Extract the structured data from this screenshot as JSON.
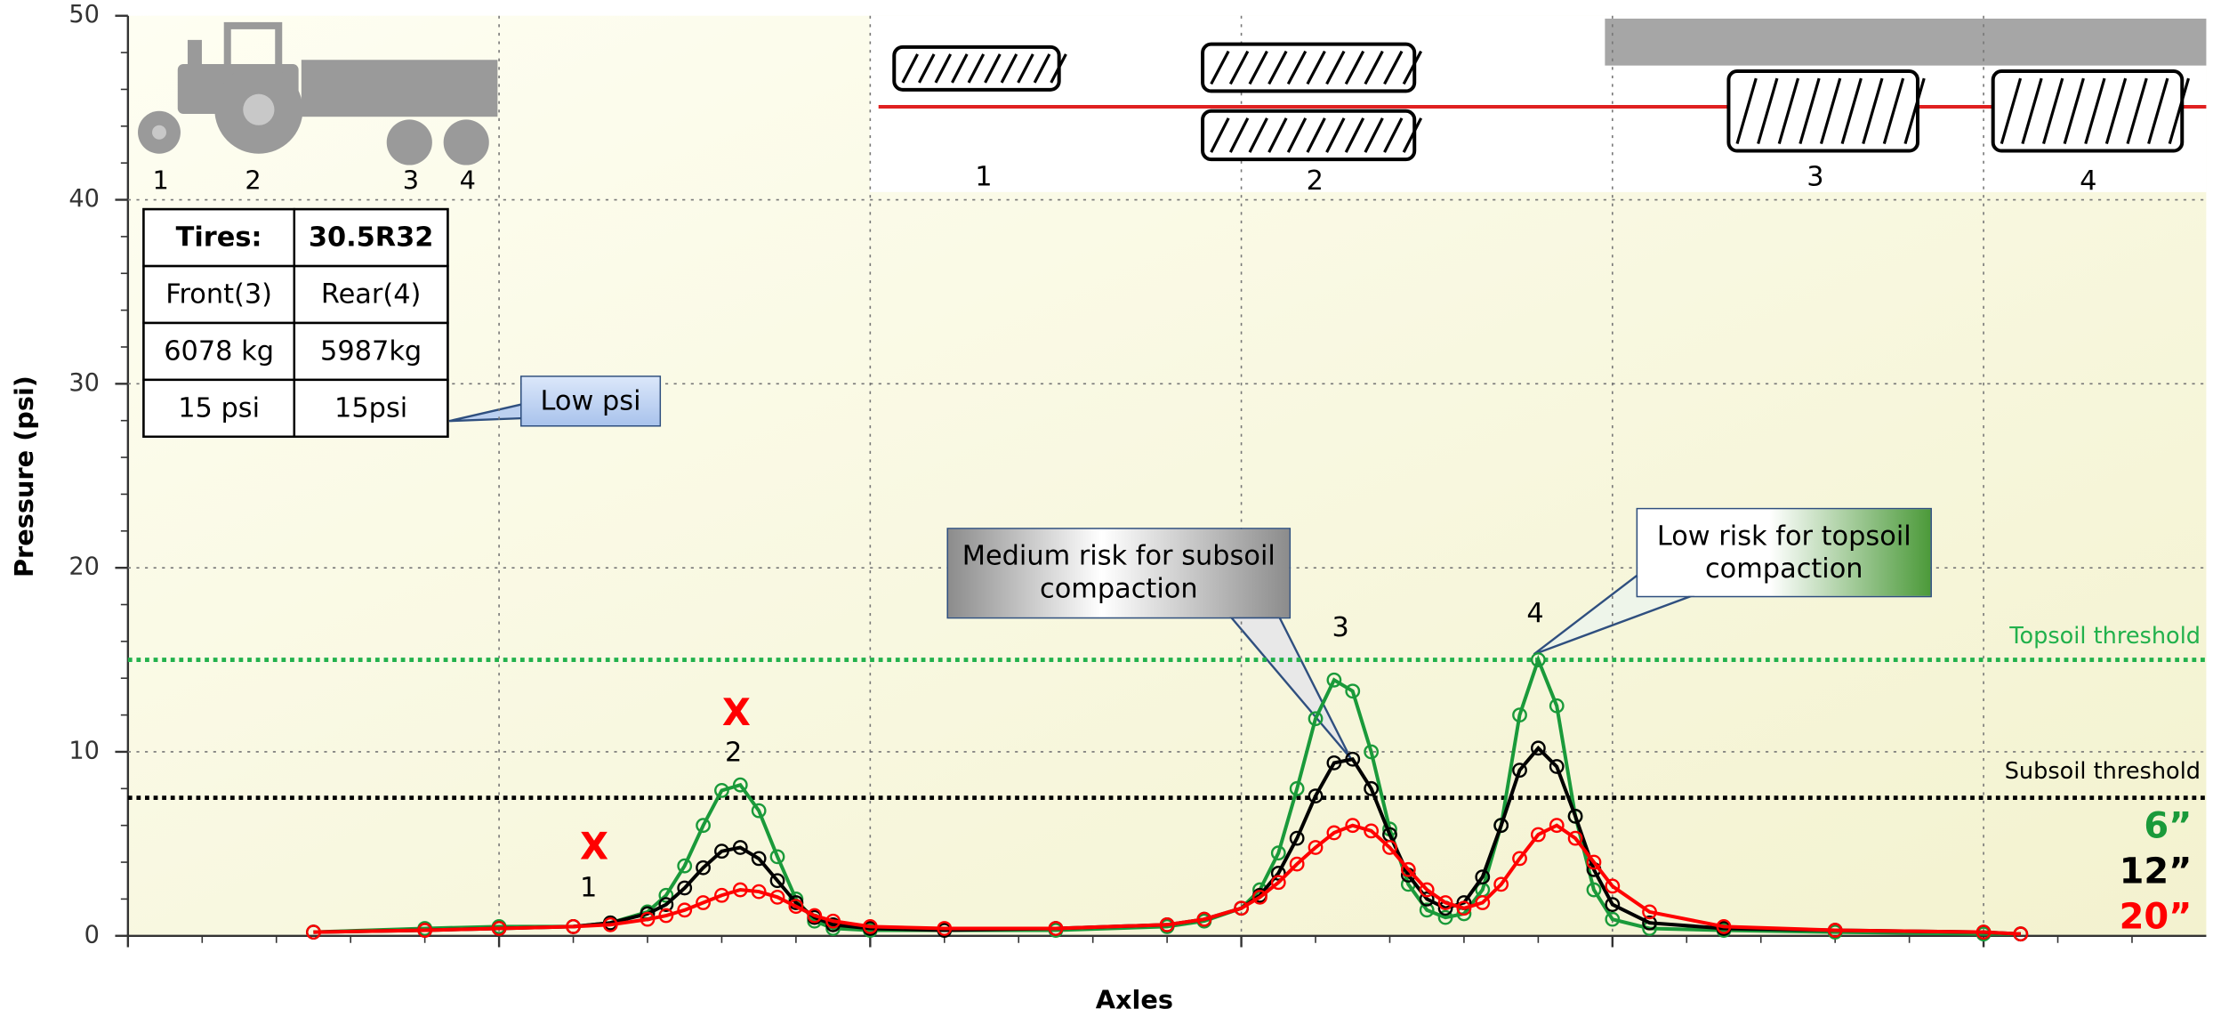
{
  "chart_data": {
    "type": "line",
    "y_label": "Pressure (psi)",
    "x_label": "Axles",
    "xlim": [
      0,
      5.6
    ],
    "ylim": [
      0,
      50
    ],
    "xticks": [
      0,
      1,
      2,
      3,
      4,
      5
    ],
    "yticks": [
      0,
      10,
      20,
      30,
      40,
      50
    ],
    "grid": true,
    "x": [
      0.5,
      0.8,
      1.0,
      1.2,
      1.3,
      1.4,
      1.45,
      1.5,
      1.55,
      1.6,
      1.65,
      1.7,
      1.75,
      1.8,
      1.85,
      1.9,
      2.0,
      2.2,
      2.5,
      2.8,
      2.9,
      3.0,
      3.05,
      3.1,
      3.15,
      3.2,
      3.25,
      3.3,
      3.35,
      3.4,
      3.45,
      3.5,
      3.55,
      3.6,
      3.65,
      3.7,
      3.75,
      3.8,
      3.85,
      3.9,
      3.95,
      4.0,
      4.1,
      4.3,
      4.6,
      5.0,
      5.1
    ],
    "series": [
      {
        "name": "6”",
        "color": "#1a9a3a",
        "values": [
          0.2,
          0.4,
          0.5,
          0.5,
          0.7,
          1.3,
          2.2,
          3.8,
          6.0,
          7.9,
          8.2,
          6.8,
          4.3,
          2.0,
          0.8,
          0.4,
          0.3,
          0.3,
          0.3,
          0.5,
          0.8,
          1.5,
          2.5,
          4.5,
          8.0,
          11.8,
          13.9,
          13.3,
          10.0,
          5.8,
          2.8,
          1.4,
          1.0,
          1.2,
          2.5,
          6.0,
          12.0,
          15.0,
          12.5,
          6.5,
          2.5,
          0.9,
          0.4,
          0.3,
          0.2,
          0.1,
          0.1
        ]
      },
      {
        "name": "12”",
        "color": "#000000",
        "values": [
          0.2,
          0.3,
          0.4,
          0.5,
          0.7,
          1.2,
          1.7,
          2.6,
          3.7,
          4.6,
          4.8,
          4.2,
          3.0,
          1.8,
          1.0,
          0.6,
          0.4,
          0.3,
          0.4,
          0.6,
          0.9,
          1.5,
          2.2,
          3.4,
          5.3,
          7.6,
          9.4,
          9.6,
          8.0,
          5.5,
          3.3,
          2.0,
          1.5,
          1.8,
          3.2,
          6.0,
          9.0,
          10.2,
          9.2,
          6.5,
          3.6,
          1.7,
          0.7,
          0.4,
          0.3,
          0.2,
          0.1
        ]
      },
      {
        "name": "20”",
        "color": "#ff0000",
        "values": [
          0.2,
          0.3,
          0.4,
          0.5,
          0.6,
          0.9,
          1.1,
          1.4,
          1.8,
          2.2,
          2.5,
          2.4,
          2.1,
          1.6,
          1.1,
          0.8,
          0.5,
          0.4,
          0.4,
          0.6,
          0.9,
          1.5,
          2.1,
          2.9,
          3.9,
          4.8,
          5.6,
          6.0,
          5.7,
          4.8,
          3.6,
          2.5,
          1.8,
          1.5,
          1.8,
          2.8,
          4.2,
          5.5,
          6.0,
          5.3,
          4.0,
          2.7,
          1.3,
          0.5,
          0.3,
          0.2,
          0.1
        ]
      }
    ],
    "thresholds": [
      {
        "label": "Topsoil threshold",
        "value": 15,
        "color": "#22b14c"
      },
      {
        "label": "Subsoil threshold",
        "value": 7.5,
        "color": "#000000"
      }
    ],
    "axle_labels": [
      "1",
      "2",
      "3",
      "4"
    ],
    "risk_marks": [
      "X",
      "X"
    ],
    "tractor_labels": [
      "1",
      "2",
      "3",
      "4"
    ],
    "tire_diagram_labels": [
      "1",
      "2",
      "3",
      "4"
    ],
    "tire_table": {
      "rows": [
        [
          "Tires:",
          "30.5R32"
        ],
        [
          "Front(3)",
          "Rear(4)"
        ],
        [
          "6078 kg",
          "5987kg"
        ],
        [
          "15 psi",
          "15psi"
        ]
      ]
    },
    "callouts": [
      "Low psi",
      "Medium risk for subsoil compaction",
      "Low risk for topsoil compaction"
    ]
  }
}
